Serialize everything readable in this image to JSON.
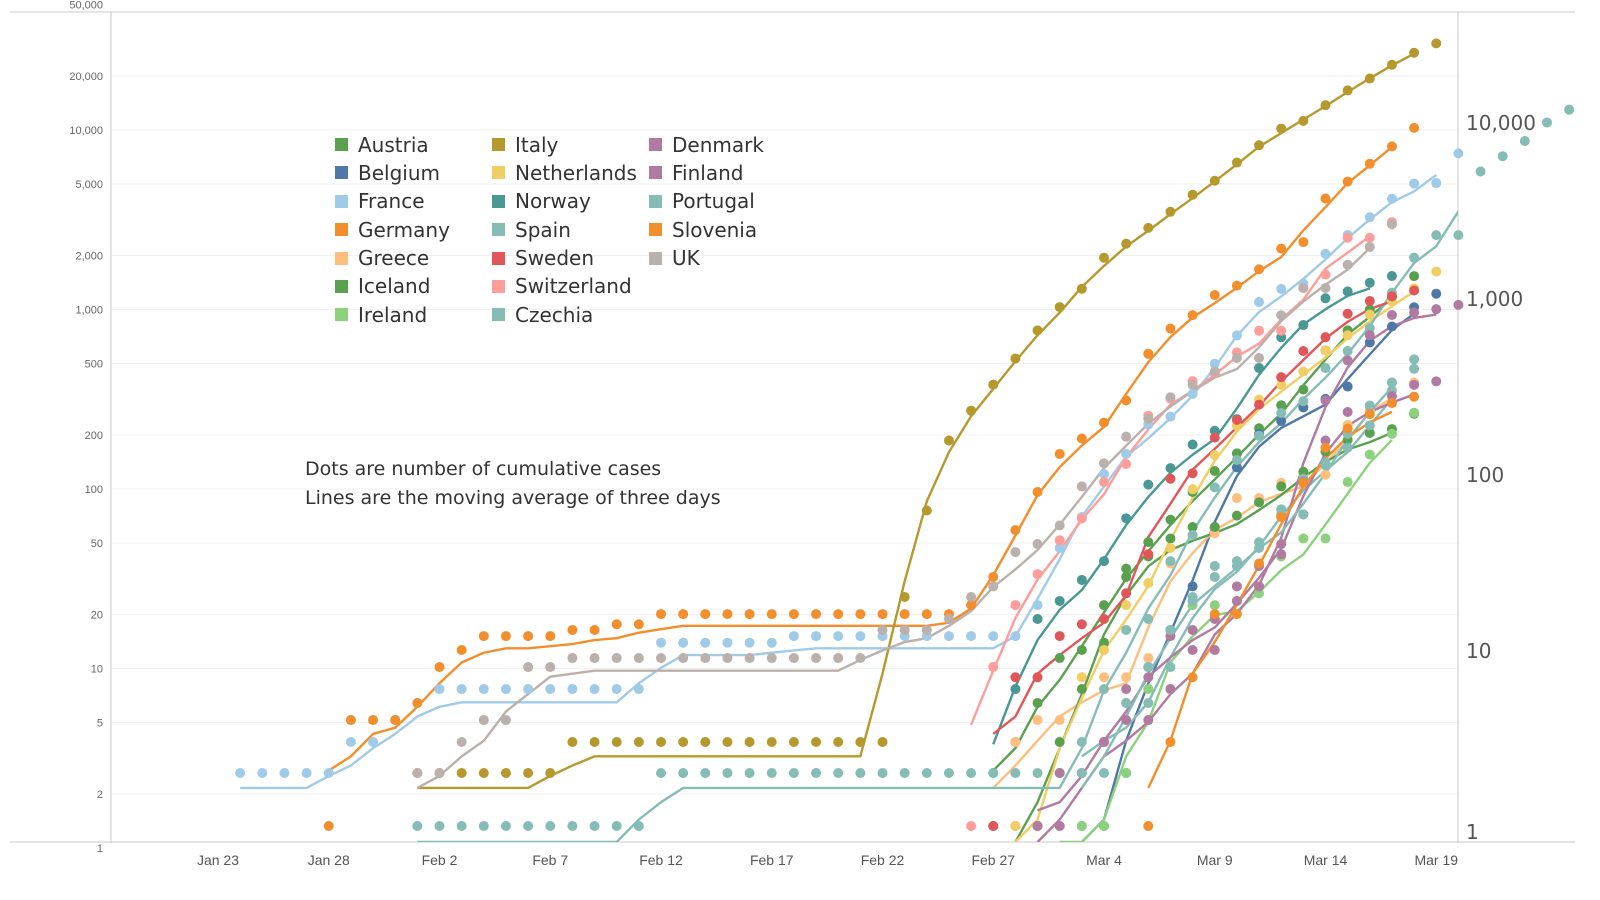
{
  "chart_data": {
    "type": "line",
    "title": "",
    "xlabel": "",
    "ylabel": "",
    "x_ticks": [
      "Jan 23",
      "Jan 28",
      "Feb 2",
      "Feb 7",
      "Feb 12",
      "Feb 17",
      "Feb 22",
      "Feb 27",
      "Mar 4",
      "Mar 9",
      "Mar 14",
      "Mar 19"
    ],
    "y_left_ticks": [
      "50,000",
      "20,000",
      "10,000",
      "5,000",
      "2,000",
      "1,000",
      "500",
      "200",
      "100",
      "50",
      "20",
      "10",
      "5",
      "2",
      "1"
    ],
    "y_left_values": [
      50000,
      20000,
      10000,
      5000,
      2000,
      1000,
      500,
      200,
      100,
      50,
      20,
      10,
      5,
      2,
      1
    ],
    "y_right_ticks": [
      "10,000",
      "1,000",
      "100",
      "10",
      "1"
    ],
    "y_right_values": [
      10000,
      1000,
      100,
      10,
      1
    ],
    "y_scale": "log",
    "ylim": [
      1,
      50000
    ],
    "x_start_date": "Jan 22",
    "annotation": [
      "Dots are number of cumulative cases",
      "Lines are the moving average of three days"
    ],
    "legend_position": "top-left",
    "series": [
      {
        "name": "Austria",
        "color": "#59A14F",
        "start_day": 36,
        "values": [
          2,
          3,
          5,
          9,
          10,
          18,
          29,
          41,
          55,
          79,
          104,
          131,
          182,
          246,
          302,
          504,
          655,
          860,
          1016,
          1332
        ]
      },
      {
        "name": "Belgium",
        "color": "#4E79A7",
        "start_day": 40,
        "values": [
          1,
          1,
          2,
          8,
          13,
          23,
          50,
          109,
          169,
          200,
          239,
          267,
          314,
          559,
          689,
          886,
          1058
        ]
      },
      {
        "name": "France",
        "color": "#A0CBE8",
        "start_day": 2,
        "values": [
          2,
          2,
          2,
          2,
          2,
          3,
          3,
          4,
          5,
          6,
          6,
          6,
          6,
          6,
          6,
          6,
          6,
          6,
          6,
          11,
          11,
          11,
          11,
          11,
          11,
          12,
          12,
          12,
          12,
          12,
          12,
          12,
          12,
          12,
          12,
          12,
          18,
          38,
          57,
          100,
          130,
          191,
          212,
          285,
          423,
          613,
          949,
          1126,
          1209,
          1784,
          2281,
          2876,
          3661,
          4469,
          4499,
          6633
        ]
      },
      {
        "name": "Germany",
        "color": "#F28E2B",
        "start_day": 6,
        "values": [
          1,
          4,
          4,
          4,
          5,
          8,
          10,
          12,
          12,
          12,
          12,
          13,
          13,
          14,
          14,
          16,
          16,
          16,
          16,
          16,
          16,
          16,
          16,
          16,
          16,
          16,
          16,
          16,
          16,
          18,
          26,
          48,
          79,
          130,
          159,
          196,
          262,
          482,
          670,
          799,
          1040,
          1176,
          1457,
          1908,
          2078,
          3675,
          4585,
          5795,
          7272,
          9257
        ]
      },
      {
        "name": "Greece",
        "color": "#FFBE7D",
        "start_day": 36,
        "values": [
          1,
          3,
          4,
          4,
          7,
          7,
          7,
          9,
          31,
          45,
          46,
          73,
          73,
          89,
          99,
          99,
          190,
          228,
          331,
          331
        ]
      },
      {
        "name": "Iceland",
        "color": "#59A14F",
        "start_day": 37,
        "values": [
          1,
          1,
          3,
          6,
          11,
          26,
          34,
          43,
          50,
          50,
          58,
          69,
          85,
          103,
          134,
          156,
          171,
          180,
          220
        ]
      },
      {
        "name": "Ireland",
        "color": "#8CD17D",
        "start_day": 39,
        "values": [
          1,
          1,
          1,
          2,
          6,
          6,
          18,
          18,
          19,
          21,
          34,
          43,
          43,
          90,
          129,
          169,
          223
        ]
      },
      {
        "name": "Italy",
        "color": "#B6992D",
        "start_day": 10,
        "values": [
          2,
          2,
          2,
          2,
          2,
          2,
          2,
          3,
          3,
          3,
          3,
          3,
          3,
          3,
          3,
          3,
          3,
          3,
          3,
          3,
          3,
          3,
          20,
          62,
          155,
          229,
          322,
          453,
          655,
          888,
          1128,
          1694,
          2036,
          2502,
          3089,
          3858,
          4636,
          5883,
          7375,
          9172,
          10149,
          12462,
          15113,
          17660,
          21157,
          24747,
          27980
        ]
      },
      {
        "name": "Netherlands",
        "color": "#F1CE63",
        "start_day": 37,
        "values": [
          1,
          1,
          2,
          7,
          10,
          18,
          24,
          38,
          82,
          128,
          188,
          265,
          321,
          382,
          503,
          614,
          804,
          959,
          1135,
          1413
        ]
      },
      {
        "name": "Norway",
        "color": "#499894",
        "start_day": 36,
        "values": [
          1,
          6,
          15,
          19,
          25,
          32,
          56,
          87,
          108,
          147,
          176,
          205,
          400,
          598,
          702,
          996,
          1090,
          1221,
          1333
        ]
      },
      {
        "name": "Spain",
        "color": "#86BCB6",
        "start_day": 10,
        "values": [
          1,
          1,
          1,
          1,
          1,
          1,
          1,
          1,
          1,
          1,
          1,
          2,
          2,
          2,
          2,
          2,
          2,
          2,
          2,
          2,
          2,
          2,
          2,
          2,
          2,
          2,
          2,
          2,
          2,
          2,
          2,
          6,
          13,
          15,
          32,
          45,
          84,
          120,
          165,
          222,
          259,
          400,
          500,
          673,
          1073,
          1695,
          2277,
          2277,
          5232,
          6391,
          7798,
          9942,
          11748
        ]
      },
      {
        "name": "Sweden",
        "color": "#E15759",
        "start_day": 36,
        "values": [
          1,
          7,
          7,
          12,
          14,
          15,
          21,
          35,
          94,
          101,
          161,
          203,
          248,
          355,
          500,
          599,
          814,
          961,
          1022,
          1103
        ]
      },
      {
        "name": "Switzerland",
        "color": "#FF9D9A",
        "start_day": 35,
        "values": [
          1,
          8,
          18,
          27,
          42,
          56,
          90,
          114,
          214,
          268,
          337,
          374,
          491,
          652,
          652,
          1139,
          1359,
          2200,
          2200,
          2700
        ]
      },
      {
        "name": "Czechia",
        "color": "#86BCB6",
        "start_day": 40,
        "values": [
          3,
          3,
          5,
          5,
          8,
          19,
          26,
          32,
          38,
          63,
          94,
          116,
          141,
          189,
          298,
          396
        ]
      },
      {
        "name": "Denmark",
        "color": "#B07AA1",
        "start_day": 38,
        "values": [
          1,
          1,
          2,
          3,
          4,
          4,
          6,
          10,
          10,
          23,
          23,
          35,
          90,
          262,
          442,
          615,
          801,
          827,
          864,
          914
        ]
      },
      {
        "name": "Finland",
        "color": "#B07AA1",
        "start_day": 38,
        "values": [
          1,
          2,
          2,
          3,
          6,
          7,
          12,
          13,
          15,
          19,
          30,
          40,
          59,
          155,
          225,
          244,
          277,
          321,
          336
        ]
      },
      {
        "name": "Portugal",
        "color": "#86BCB6",
        "start_day": 40,
        "values": [
          2,
          2,
          5,
          8,
          13,
          20,
          30,
          30,
          41,
          59,
          59,
          112,
          169,
          245,
          331,
          448
        ]
      },
      {
        "name": "Slovenia",
        "color": "#F28E2B",
        "start_day": 43,
        "values": [
          1,
          3,
          7,
          16,
          16,
          31,
          57,
          89,
          141,
          181,
          219,
          253,
          275
        ]
      },
      {
        "name": "UK",
        "color": "#BAB0AC",
        "start_day": 10,
        "values": [
          2,
          2,
          3,
          4,
          4,
          8,
          8,
          9,
          9,
          9,
          9,
          9,
          9,
          9,
          9,
          9,
          9,
          9,
          9,
          9,
          9,
          13,
          13,
          13,
          15,
          20,
          23,
          36,
          40,
          51,
          85,
          115,
          163,
          206,
          273,
          321,
          382,
          456,
          456,
          798,
          1140,
          1140,
          1543,
          1950,
          2626
        ]
      }
    ]
  },
  "legend": {
    "items": [
      {
        "label": "Austria",
        "color": "#59A14F"
      },
      {
        "label": "Italy",
        "color": "#B6992D"
      },
      {
        "label": "Denmark",
        "color": "#B07AA1"
      },
      {
        "label": "Belgium",
        "color": "#4E79A7"
      },
      {
        "label": "Netherlands",
        "color": "#F1CE63"
      },
      {
        "label": "Finland",
        "color": "#B07AA1"
      },
      {
        "label": "France",
        "color": "#A0CBE8"
      },
      {
        "label": "Norway",
        "color": "#499894"
      },
      {
        "label": "Portugal",
        "color": "#86BCB6"
      },
      {
        "label": "Germany",
        "color": "#F28E2B"
      },
      {
        "label": "Spain",
        "color": "#86BCB6"
      },
      {
        "label": "Slovenia",
        "color": "#F28E2B"
      },
      {
        "label": "Greece",
        "color": "#FFBE7D"
      },
      {
        "label": "Sweden",
        "color": "#E15759"
      },
      {
        "label": "UK",
        "color": "#BAB0AC"
      },
      {
        "label": "Iceland",
        "color": "#59A14F"
      },
      {
        "label": "Switzerland",
        "color": "#FF9D9A"
      },
      {
        "label": "",
        "color": ""
      },
      {
        "label": "Ireland",
        "color": "#8CD17D"
      },
      {
        "label": "Czechia",
        "color": "#86BCB6"
      },
      {
        "label": "",
        "color": ""
      }
    ]
  },
  "note": {
    "line1": "Dots are number of cumulative cases",
    "line2": "Lines are the moving average of three days"
  }
}
